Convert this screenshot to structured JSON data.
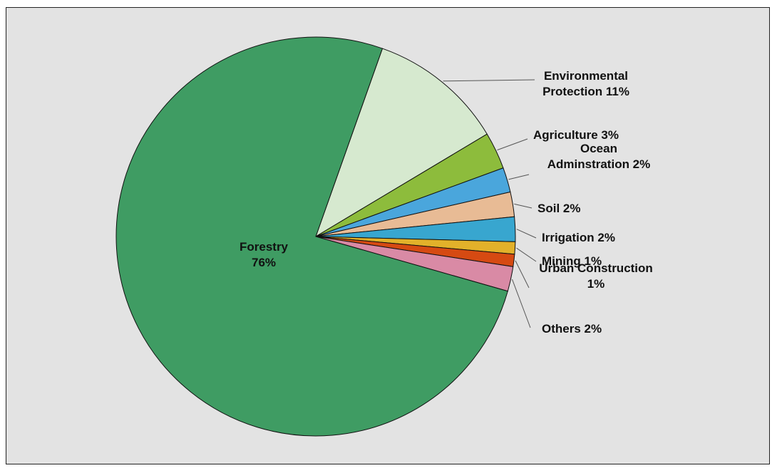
{
  "chart_data": {
    "type": "pie",
    "title": "",
    "start_angle_deg": 19.5,
    "direction": "clockwise",
    "slices": [
      {
        "name": "Environmental Protection",
        "value": 11,
        "label_lines": [
          "Environmental",
          "Protection 11%"
        ],
        "color": "#d6e9cf"
      },
      {
        "name": "Agriculture",
        "value": 3,
        "label_lines": [
          "Agriculture 3%"
        ],
        "color": "#8dbc3c"
      },
      {
        "name": "Ocean Adminstration",
        "value": 2,
        "label_lines": [
          "Ocean",
          "Adminstration 2%"
        ],
        "color": "#4aa6dc"
      },
      {
        "name": "Soil",
        "value": 2,
        "label_lines": [
          "Soil 2%"
        ],
        "color": "#e8bb95"
      },
      {
        "name": "Irrigation",
        "value": 2,
        "label_lines": [
          "Irrigation 2%"
        ],
        "color": "#38a6cf"
      },
      {
        "name": "Mining",
        "value": 1,
        "label_lines": [
          "Mining 1%"
        ],
        "color": "#e2b12a"
      },
      {
        "name": "Urban Construction",
        "value": 1,
        "label_lines": [
          "Urban Construction",
          "1%"
        ],
        "color": "#d64a12"
      },
      {
        "name": "Others",
        "value": 2,
        "label_lines": [
          "Others 2%"
        ],
        "color": "#d98aa5"
      },
      {
        "name": "Forestry",
        "value": 76,
        "label_lines": [
          "Forestry",
          "76%"
        ],
        "color": "#3f9c63"
      }
    ]
  }
}
